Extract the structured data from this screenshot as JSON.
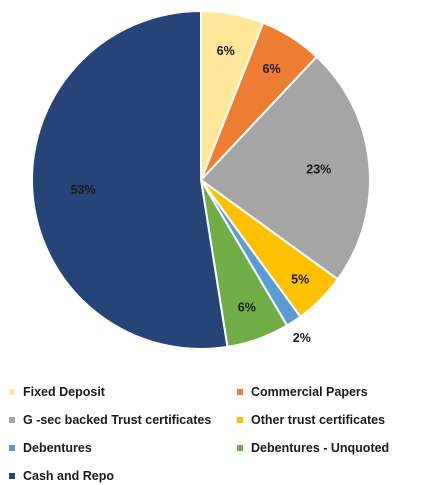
{
  "chart_data": {
    "type": "pie",
    "title": "",
    "start_angle": "12 o'clock",
    "direction": "clockwise",
    "legend_position": "bottom",
    "slices": [
      {
        "name": "Fixed Deposit",
        "value": 6,
        "label": "6%",
        "color": "#FFE699"
      },
      {
        "name": "Commercial Papers",
        "value": 6,
        "label": "6%",
        "color": "#ED7D31"
      },
      {
        "name": "G -sec backed Trust certificates",
        "value": 23,
        "label": "23%",
        "color": "#A5A5A5"
      },
      {
        "name": "Other trust certificates",
        "value": 5,
        "label": "5%",
        "color": "#FFC000"
      },
      {
        "name": "Debentures",
        "value": 1.5,
        "label": "2%",
        "color": "#5B9BD5"
      },
      {
        "name": "Debentures - Unquoted",
        "value": 6,
        "label": "6%",
        "color": "#70AD47"
      },
      {
        "name": "Cash and Repo",
        "value": 52.5,
        "label": "53%",
        "color": "#264478"
      }
    ]
  }
}
